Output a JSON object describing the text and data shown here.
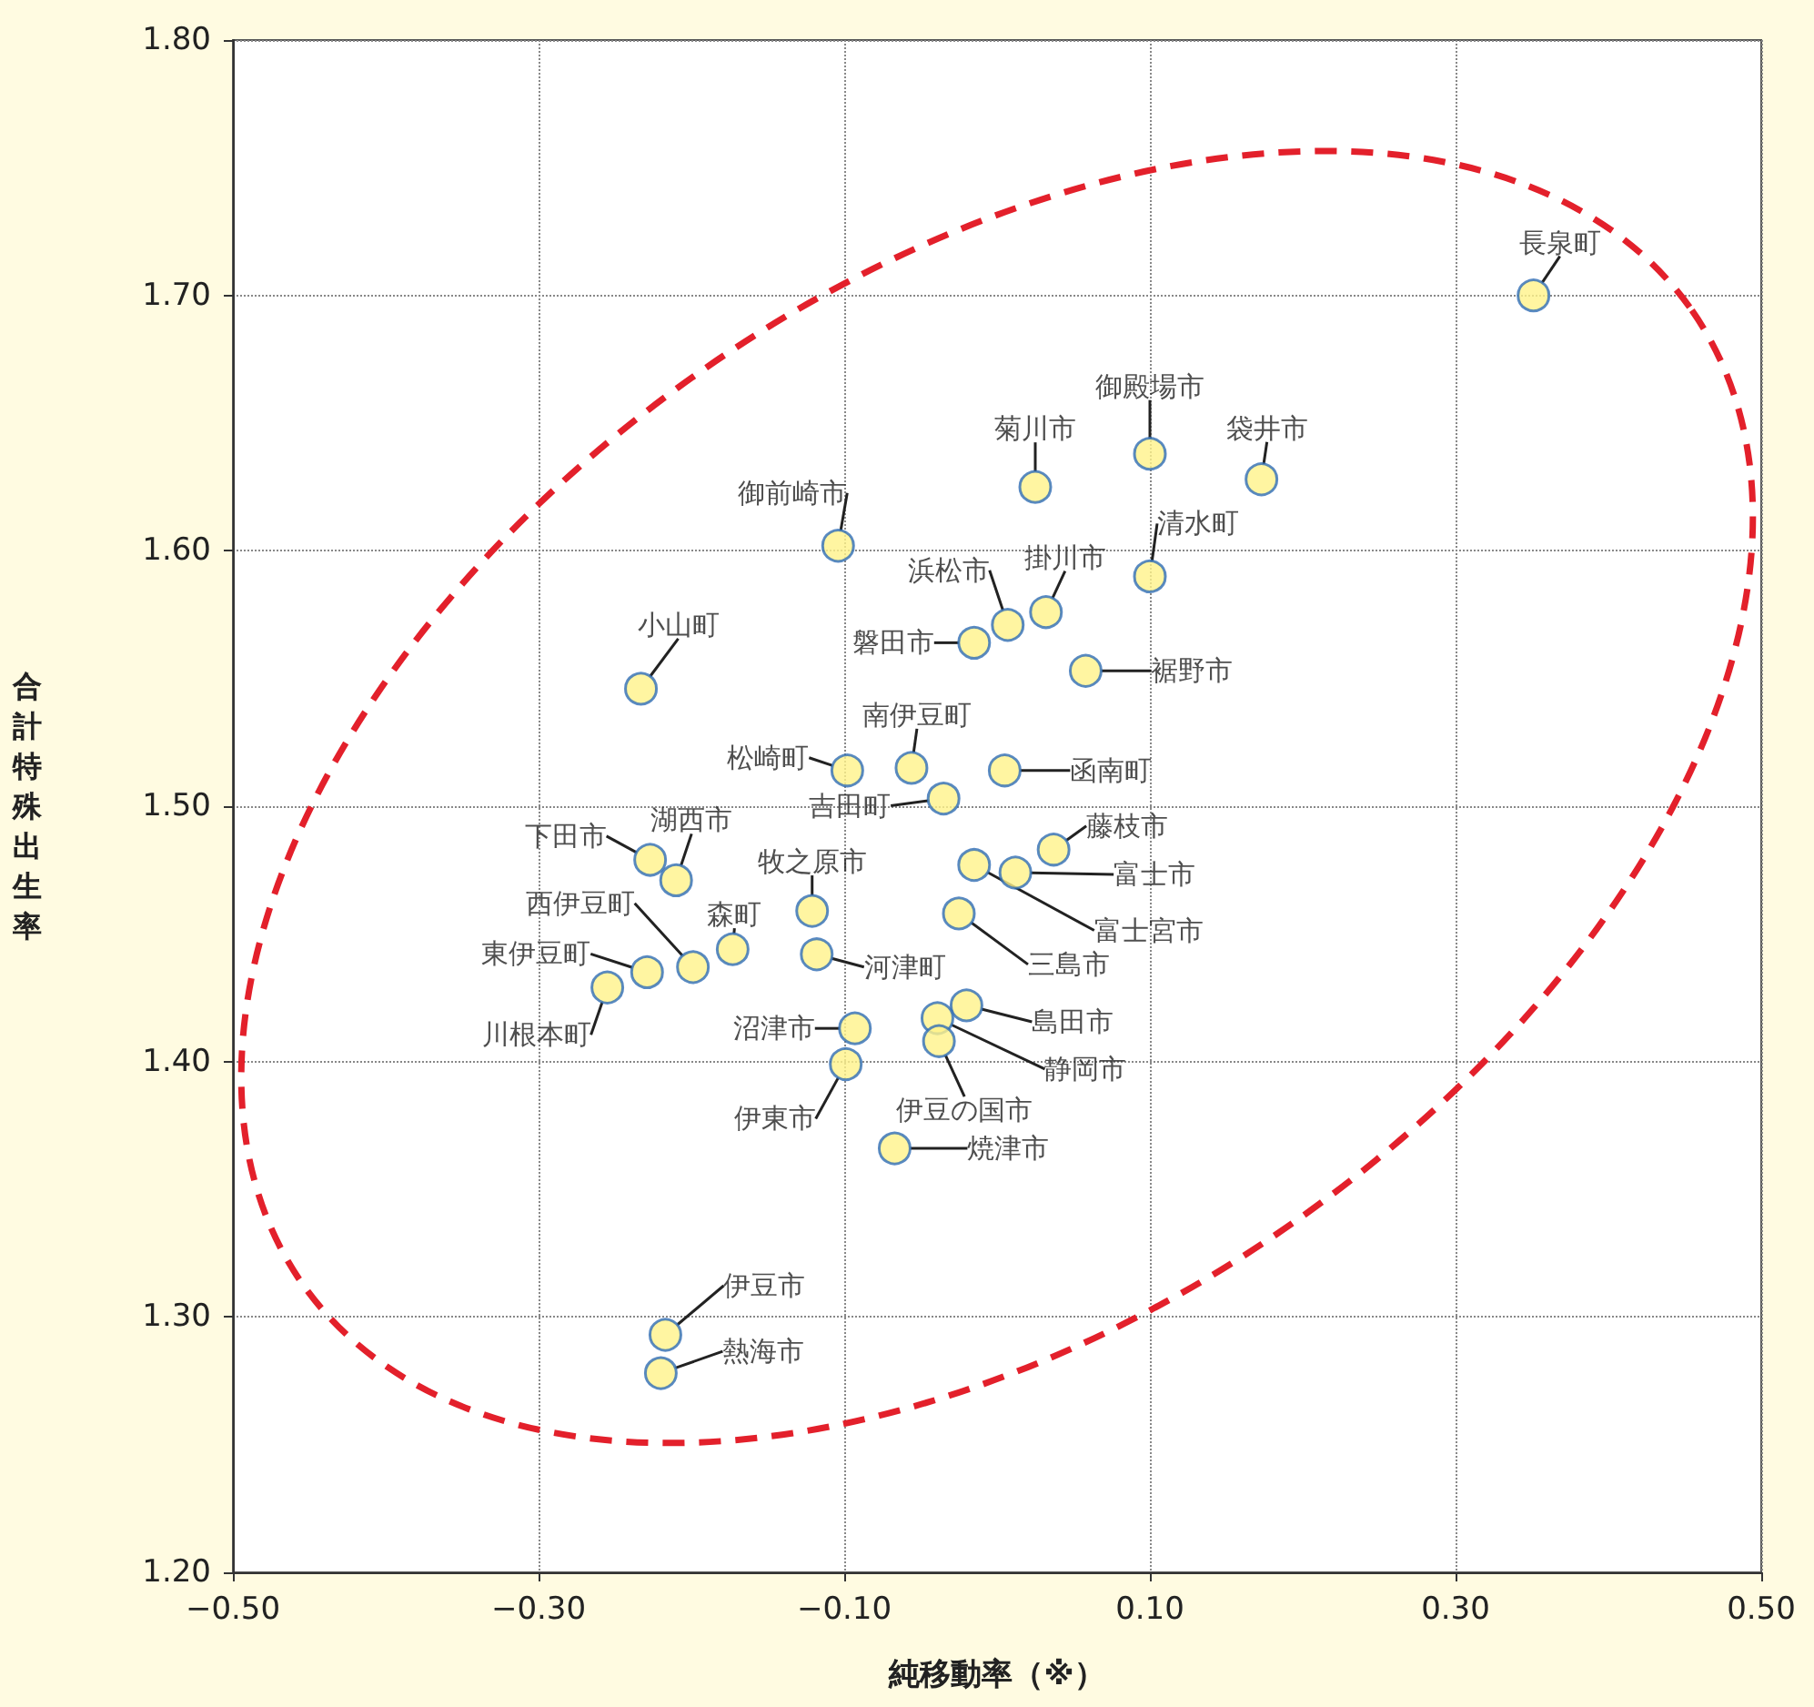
{
  "chart_data": {
    "type": "scatter",
    "xlabel": "純移動率（※）",
    "ylabel": "合計特殊出生率",
    "x": [
      0.351,
      0.1,
      0.173,
      0.025,
      -0.104,
      0.1,
      0.032,
      0.007,
      -0.015,
      0.058,
      -0.233,
      -0.056,
      -0.098,
      0.005,
      -0.035,
      0.037,
      -0.227,
      0.012,
      -0.015,
      -0.21,
      -0.121,
      -0.025,
      -0.173,
      -0.199,
      -0.118,
      -0.229,
      -0.255,
      -0.02,
      -0.093,
      -0.039,
      -0.038,
      -0.099,
      -0.067,
      -0.217,
      -0.22
    ],
    "series": [
      {
        "color": "#fff38a",
        "values": [
          1.7,
          1.638,
          1.628,
          1.625,
          1.602,
          1.59,
          1.576,
          1.571,
          1.564,
          1.553,
          1.546,
          1.515,
          1.514,
          1.514,
          1.503,
          1.483,
          1.479,
          1.474,
          1.477,
          1.471,
          1.459,
          1.458,
          1.444,
          1.437,
          1.442,
          1.435,
          1.429,
          1.422,
          1.413,
          1.417,
          1.408,
          1.399,
          1.366,
          1.293,
          1.278
        ]
      }
    ],
    "annotations": [
      {
        "text": "長泉町",
        "x": 0.351,
        "y": 1.7
      },
      {
        "text": "御殿場市",
        "x": 0.1,
        "y": 1.638
      },
      {
        "text": "袋井市",
        "x": 0.173,
        "y": 1.628
      },
      {
        "text": "菊川市",
        "x": 0.025,
        "y": 1.625
      },
      {
        "text": "御前崎市",
        "x": -0.104,
        "y": 1.602
      },
      {
        "text": "清水町",
        "x": 0.1,
        "y": 1.59
      },
      {
        "text": "掛川市",
        "x": 0.032,
        "y": 1.576
      },
      {
        "text": "浜松市",
        "x": 0.007,
        "y": 1.571
      },
      {
        "text": "磐田市",
        "x": -0.015,
        "y": 1.564
      },
      {
        "text": "裾野市",
        "x": 0.058,
        "y": 1.553
      },
      {
        "text": "小山町",
        "x": -0.233,
        "y": 1.546
      },
      {
        "text": "南伊豆町",
        "x": -0.056,
        "y": 1.515
      },
      {
        "text": "松崎町",
        "x": -0.098,
        "y": 1.514
      },
      {
        "text": "函南町",
        "x": 0.005,
        "y": 1.514
      },
      {
        "text": "吉田町",
        "x": -0.035,
        "y": 1.503
      },
      {
        "text": "藤枝市",
        "x": 0.037,
        "y": 1.483
      },
      {
        "text": "下田市",
        "x": -0.227,
        "y": 1.479
      },
      {
        "text": "富士市",
        "x": 0.012,
        "y": 1.474
      },
      {
        "text": "富士宮市",
        "x": -0.015,
        "y": 1.477
      },
      {
        "text": "湖西市",
        "x": -0.21,
        "y": 1.471
      },
      {
        "text": "牧之原市",
        "x": -0.121,
        "y": 1.459
      },
      {
        "text": "三島市",
        "x": -0.025,
        "y": 1.458
      },
      {
        "text": "森町",
        "x": -0.173,
        "y": 1.444
      },
      {
        "text": "西伊豆町",
        "x": -0.199,
        "y": 1.437
      },
      {
        "text": "河津町",
        "x": -0.118,
        "y": 1.442
      },
      {
        "text": "東伊豆町",
        "x": -0.229,
        "y": 1.435
      },
      {
        "text": "川根本町",
        "x": -0.255,
        "y": 1.429
      },
      {
        "text": "島田市",
        "x": -0.02,
        "y": 1.422
      },
      {
        "text": "沼津市",
        "x": -0.093,
        "y": 1.413
      },
      {
        "text": "静岡市",
        "x": -0.039,
        "y": 1.417
      },
      {
        "text": "伊豆の国市",
        "x": -0.038,
        "y": 1.408
      },
      {
        "text": "伊東市",
        "x": -0.099,
        "y": 1.399
      },
      {
        "text": "焼津市",
        "x": -0.067,
        "y": 1.366
      },
      {
        "text": "伊豆市",
        "x": -0.217,
        "y": 1.293
      },
      {
        "text": "熱海市",
        "x": -0.22,
        "y": 1.278
      }
    ],
    "xlim": [
      -0.5,
      0.5
    ],
    "xticks": [
      {
        "value": -0.5,
        "label": "−0.50"
      },
      {
        "value": -0.3,
        "label": "−0.30"
      },
      {
        "value": -0.1,
        "label": "−0.10"
      },
      {
        "value": 0.1,
        "label": "0.10"
      },
      {
        "value": 0.3,
        "label": "0.30"
      },
      {
        "value": 0.5,
        "label": "0.50"
      }
    ],
    "ylim": [
      1.2,
      1.8
    ],
    "yticks": [
      {
        "value": 1.2,
        "label": "1.20"
      },
      {
        "value": 1.3,
        "label": "1.30"
      },
      {
        "value": 1.4,
        "label": "1.40"
      },
      {
        "value": 1.5,
        "label": "1.50"
      },
      {
        "value": 1.6,
        "label": "1.60"
      },
      {
        "value": 1.7,
        "label": "1.70"
      },
      {
        "value": 1.8,
        "label": "1.80"
      }
    ],
    "grid": true,
    "marker": "circle"
  }
}
